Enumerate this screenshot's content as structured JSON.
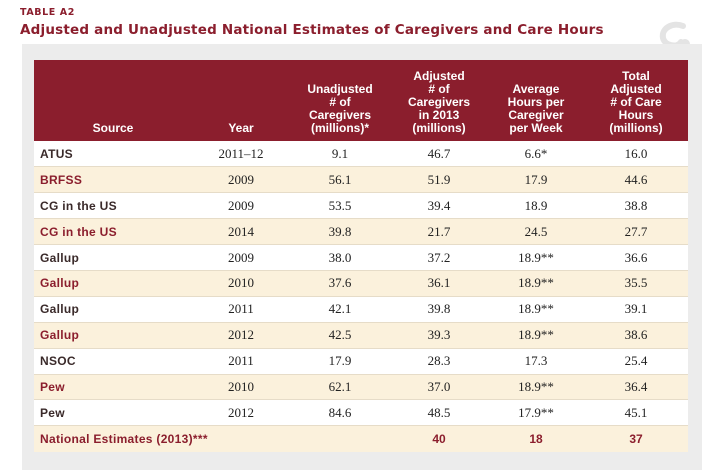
{
  "table_label": "TABLE A2",
  "title": "Adjusted and Unadjusted National Estimates of Caregivers and Care Hours",
  "colors": {
    "accent": "#8b1e2d",
    "band": "#fbf1dc",
    "panel": "#ececec"
  },
  "headers": [
    "Source",
    "Year",
    "Unadjusted # of Caregivers (millions)*",
    "Adjusted # of Caregivers in 2013 (millions)",
    "Average Hours per Caregiver per Week",
    "Total Adjusted # of Care Hours (millions)"
  ],
  "header_lines": [
    [
      "Source"
    ],
    [
      "Year"
    ],
    [
      "Unadjusted",
      "# of",
      "Caregivers",
      "(millions)*"
    ],
    [
      "Adjusted",
      "# of",
      "Caregivers",
      "in 2013",
      "(millions)"
    ],
    [
      "Average",
      "Hours per",
      "Caregiver",
      "per Week"
    ],
    [
      "Total",
      "Adjusted",
      "# of Care",
      "Hours",
      "(millions)"
    ]
  ],
  "rows": [
    [
      "ATUS",
      "2011–12",
      "9.1",
      "46.7",
      "6.6*",
      "16.0"
    ],
    [
      "BRFSS",
      "2009",
      "56.1",
      "51.9",
      "17.9",
      "44.6"
    ],
    [
      "CG in the US",
      "2009",
      "53.5",
      "39.4",
      "18.9",
      "38.8"
    ],
    [
      "CG in the US",
      "2014",
      "39.8",
      "21.7",
      "24.5",
      "27.7"
    ],
    [
      "Gallup",
      "2009",
      "38.0",
      "37.2",
      "18.9**",
      "36.6"
    ],
    [
      "Gallup",
      "2010",
      "37.6",
      "36.1",
      "18.9**",
      "35.5"
    ],
    [
      "Gallup",
      "2011",
      "42.1",
      "39.8",
      "18.9**",
      "39.1"
    ],
    [
      "Gallup",
      "2012",
      "42.5",
      "39.3",
      "18.9**",
      "38.6"
    ],
    [
      "NSOC",
      "2011",
      "17.9",
      "28.3",
      "17.3",
      "25.4"
    ],
    [
      "Pew",
      "2010",
      "62.1",
      "37.0",
      "18.9**",
      "36.4"
    ],
    [
      "Pew",
      "2012",
      "84.6",
      "48.5",
      "17.9**",
      "45.1"
    ]
  ],
  "total": {
    "label": "National Estimates (2013)***",
    "adjusted": "40",
    "hours": "18",
    "total_hours": "37"
  }
}
